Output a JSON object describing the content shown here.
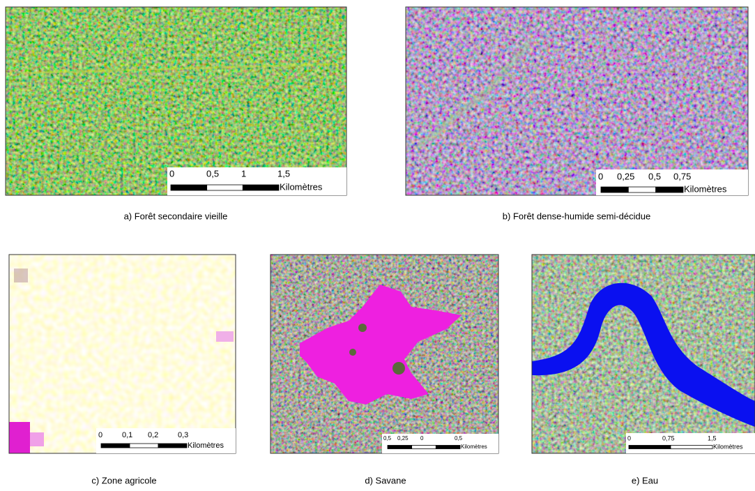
{
  "panels": [
    {
      "caption": "a) Forêt secondaire vieille",
      "scale": {
        "ticks": [
          "0",
          "0,5",
          "1",
          "1,5"
        ],
        "unit": "Kilomètres"
      }
    },
    {
      "caption": "b) Forêt dense-humide semi-décidue",
      "scale": {
        "ticks": [
          "0",
          "0,25",
          "0,5",
          "0,75"
        ],
        "unit": "Kilomètres"
      }
    },
    {
      "caption": "c) Zone agricole",
      "scale": {
        "ticks": [
          "0",
          "0,1",
          "0,2",
          "0,3"
        ],
        "unit": "Kilomètres"
      }
    },
    {
      "caption": "d) Savane",
      "scale": {
        "ticks": [
          "0,5",
          "0,25",
          "0",
          "0,5"
        ],
        "unit": "Kilomètres"
      }
    },
    {
      "caption": "e) Eau",
      "scale": {
        "ticks": [
          "0",
          "0,75",
          "1,5"
        ],
        "unit": "Kilomètres"
      }
    }
  ]
}
